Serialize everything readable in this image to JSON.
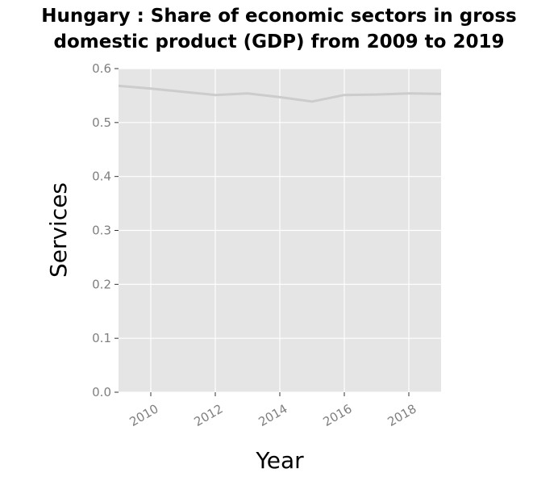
{
  "chart_data": {
    "type": "line",
    "title_lines": [
      "Hungary : Share of economic sectors in gross",
      "domestic product (GDP) from 2009 to 2019"
    ],
    "xlabel": "Year",
    "ylabel": "Services",
    "xlim": [
      2009,
      2019
    ],
    "ylim": [
      0,
      0.6
    ],
    "x_ticks": [
      2010,
      2012,
      2014,
      2016,
      2018
    ],
    "y_ticks": [
      "0.0",
      "0.1",
      "0.2",
      "0.3",
      "0.4",
      "0.5",
      "0.6"
    ],
    "grid": true,
    "series": [
      {
        "x": [
          2009,
          2010,
          2011,
          2012,
          2013,
          2014,
          2015,
          2016,
          2017,
          2018,
          2019
        ],
        "values": [
          0.568,
          0.563,
          0.557,
          0.551,
          0.554,
          0.547,
          0.539,
          0.551,
          0.552,
          0.554,
          0.553
        ]
      }
    ],
    "colors": {
      "panel": "#e5e5e5",
      "grid": "#ffffff",
      "line": "#cccccc",
      "tick_label": "#7f7f7f"
    }
  }
}
